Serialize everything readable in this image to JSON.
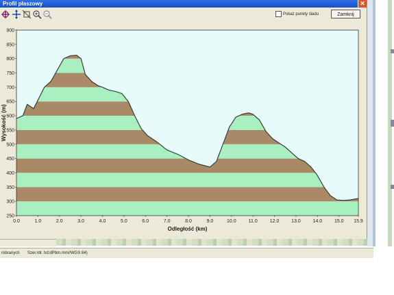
{
  "window": {
    "title": "Profil płaszowy",
    "close_glyph": "✕"
  },
  "toolbar": {
    "icons": [
      "crosshair-icon",
      "move-icon",
      "rotate-icon",
      "zoom-in-icon",
      "zoom-out-icon"
    ],
    "checkbox_label": "Pokaż punkty śladu",
    "close_button_label": "Zamknij"
  },
  "chart_data": {
    "type": "area",
    "ylabel": "Wysokość (m)",
    "xlabel": "Odległość  (km)",
    "xlim": [
      0,
      15.9
    ],
    "ylim": [
      250,
      900
    ],
    "x_ticks": [
      "0.0",
      "1.0",
      "2.0",
      "3.0",
      "4.0",
      "5.0",
      "6.0",
      "7.0",
      "8.0",
      "9.0",
      "10.0",
      "11.0",
      "12.0",
      "13.0",
      "14.0",
      "15.0",
      "15.9"
    ],
    "x_tick_values": [
      0,
      1,
      2,
      3,
      4,
      5,
      6,
      7,
      8,
      9,
      10,
      11,
      12,
      13,
      14,
      15,
      15.9
    ],
    "y_ticks": [
      250,
      300,
      350,
      400,
      450,
      500,
      550,
      600,
      650,
      700,
      750,
      800,
      850,
      900
    ],
    "grid": false,
    "background_color": "#e8fbfb",
    "band_colors": [
      "#a8f0c0",
      "#aa8966"
    ],
    "band_height": 50,
    "line_color": "#3a3a3a",
    "series": [
      {
        "x": [
          0,
          0.3,
          0.5,
          0.8,
          1.0,
          1.3,
          1.6,
          1.9,
          2.2,
          2.5,
          2.8,
          3.0,
          3.2,
          3.5,
          3.8,
          4.0,
          4.3,
          4.6,
          4.9,
          5.2,
          5.5,
          5.8,
          6.1,
          6.5,
          7.0,
          7.5,
          8.0,
          8.5,
          9.0,
          9.3,
          9.6,
          9.9,
          10.2,
          10.5,
          10.8,
          11.0,
          11.3,
          11.6,
          11.9,
          12.2,
          12.5,
          12.8,
          13.1,
          13.4,
          13.7,
          14.0,
          14.3,
          14.6,
          14.9,
          15.2,
          15.5,
          15.9
        ],
        "y": [
          590,
          600,
          640,
          625,
          655,
          700,
          720,
          760,
          800,
          810,
          812,
          800,
          745,
          720,
          705,
          700,
          690,
          685,
          678,
          650,
          600,
          555,
          530,
          510,
          480,
          465,
          445,
          430,
          420,
          440,
          500,
          560,
          595,
          605,
          610,
          605,
          585,
          545,
          520,
          505,
          490,
          470,
          450,
          440,
          420,
          390,
          350,
          320,
          305,
          303,
          305,
          310
        ]
      }
    ]
  },
  "bottom": {
    "statusbar": [
      "robranych",
      "Szer.rdr. hd:dPbm.mm//WGS 84)"
    ]
  }
}
